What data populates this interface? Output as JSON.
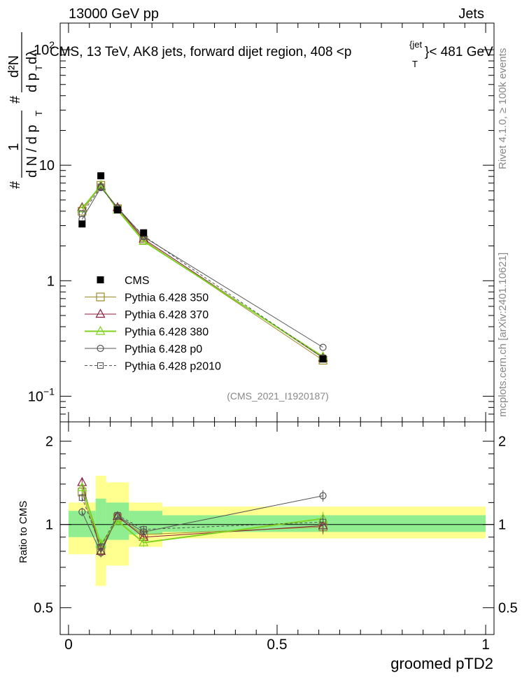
{
  "header": {
    "left": "13000 GeV pp",
    "right": "Jets"
  },
  "side": {
    "rivet": "Rivet 4.1.0, ≥ 100k events",
    "source": "mcplots.cern.ch [arXiv:2401.10621]"
  },
  "chart_data": {
    "type": "line",
    "title_main": "CMS, 13 TeV, AK8 jets, forward dijet region, 408 <p",
    "title_sup": "{jet",
    "title_sub": "T",
    "title_tail": "}< 481 GeV",
    "watermark": "(CMS_2021_I1920187)",
    "ylabel": {
      "frac_num": "1",
      "frac_den_prefix": "d N / d p",
      "sub_T": "T",
      "hash": "#",
      "hash2": "#",
      "d2N_num": "d²N",
      "den2_prefix": "d p",
      "den2_sub": "T",
      "den2_suffix": " dλ"
    },
    "xlabel": "groomed pTD2",
    "ratio_ylabel": "Ratio to CMS",
    "xlim": [
      -0.02,
      1.02
    ],
    "ylim": [
      0.06,
      170
    ],
    "ratio_ylim": [
      0.4,
      2.35
    ],
    "x_ticks": [
      {
        "value": 0,
        "label": "0"
      },
      {
        "value": 0.5,
        "label": "0.5"
      },
      {
        "value": 1,
        "label": "1"
      }
    ],
    "y_ticks": [
      {
        "value": 0.1,
        "base": "10",
        "exp": "−1"
      },
      {
        "value": 1,
        "base": "1",
        "exp": ""
      },
      {
        "value": 10,
        "base": "10",
        "exp": ""
      },
      {
        "value": 100,
        "base": "10",
        "exp": "2"
      }
    ],
    "ratio_ticks": [
      {
        "value": 0.5,
        "label": "0.5"
      },
      {
        "value": 1,
        "label": "1"
      },
      {
        "value": 2,
        "label": "2"
      }
    ],
    "bins": [
      {
        "x": 0.0325,
        "lo": 0.0,
        "hi": 0.065
      },
      {
        "x": 0.0775,
        "lo": 0.065,
        "hi": 0.09
      },
      {
        "x": 0.1175,
        "lo": 0.09,
        "hi": 0.145
      },
      {
        "x": 0.18,
        "lo": 0.145,
        "hi": 0.225
      },
      {
        "x": 0.61,
        "lo": 0.225,
        "hi": 1.0
      }
    ],
    "bands": [
      {
        "lo": 0.0,
        "hi": 0.065,
        "inner": [
          0.9,
          1.12
        ],
        "outer": [
          0.78,
          1.2
        ]
      },
      {
        "lo": 0.065,
        "hi": 0.09,
        "inner": [
          0.82,
          1.24
        ],
        "outer": [
          0.6,
          1.5
        ]
      },
      {
        "lo": 0.09,
        "hi": 0.145,
        "inner": [
          0.88,
          1.2
        ],
        "outer": [
          0.71,
          1.42
        ]
      },
      {
        "lo": 0.145,
        "hi": 0.225,
        "inner": [
          0.92,
          1.12
        ],
        "outer": [
          0.83,
          1.2
        ]
      },
      {
        "lo": 0.225,
        "hi": 1.0,
        "inner": [
          0.94,
          1.08
        ],
        "outer": [
          0.89,
          1.16
        ]
      }
    ],
    "series": [
      {
        "name": "CMS",
        "color": "#000000",
        "marker": "square-filled",
        "dash": "",
        "values": [
          3.1,
          8.1,
          4.1,
          2.6,
          0.21
        ],
        "ratio": [
          1.0,
          1.0,
          1.0,
          1.0,
          1.0
        ],
        "ratio_err": [
          0.0,
          0.0,
          0.0,
          0.0,
          0.0
        ]
      },
      {
        "name": "Pythia 6.428 350",
        "color": "#a08a2a",
        "marker": "square-open",
        "dash": "",
        "values": [
          4.0,
          6.7,
          4.2,
          2.25,
          0.205
        ],
        "ratio": [
          1.31,
          0.81,
          1.06,
          0.92,
          0.98
        ],
        "ratio_err": [
          0.05,
          0.03,
          0.03,
          0.03,
          0.06
        ]
      },
      {
        "name": "Pythia 6.428 370",
        "color": "#8b1a3a",
        "marker": "triangle-open",
        "dash": "",
        "values": [
          4.3,
          6.5,
          4.3,
          2.3,
          0.215
        ],
        "ratio": [
          1.42,
          0.8,
          1.07,
          0.9,
          0.99
        ],
        "ratio_err": [
          0.06,
          0.03,
          0.03,
          0.03,
          0.06
        ]
      },
      {
        "name": "Pythia 6.428 380",
        "color": "#7ed321",
        "marker": "triangle-open",
        "dash": "",
        "values": [
          4.2,
          6.7,
          4.1,
          2.2,
          0.22
        ],
        "ratio": [
          1.36,
          0.85,
          1.03,
          0.86,
          1.05
        ],
        "ratio_err": [
          0.05,
          0.03,
          0.03,
          0.03,
          0.06
        ]
      },
      {
        "name": "Pythia 6.428 p0",
        "color": "#555555",
        "marker": "circle-open",
        "dash": "",
        "values": [
          3.4,
          6.4,
          4.3,
          2.4,
          0.265
        ],
        "ratio": [
          1.11,
          0.79,
          1.07,
          0.94,
          1.27
        ],
        "ratio_err": [
          0.04,
          0.03,
          0.03,
          0.03,
          0.06
        ]
      },
      {
        "name": "Pythia 6.428 p2010",
        "color": "#555555",
        "marker": "square-open-small",
        "dash": "4,3",
        "values": [
          3.8,
          6.5,
          4.2,
          2.45,
          0.215
        ],
        "ratio": [
          1.25,
          0.83,
          1.08,
          0.96,
          1.02
        ],
        "ratio_err": [
          0.04,
          0.03,
          0.03,
          0.03,
          0.06
        ]
      }
    ]
  }
}
